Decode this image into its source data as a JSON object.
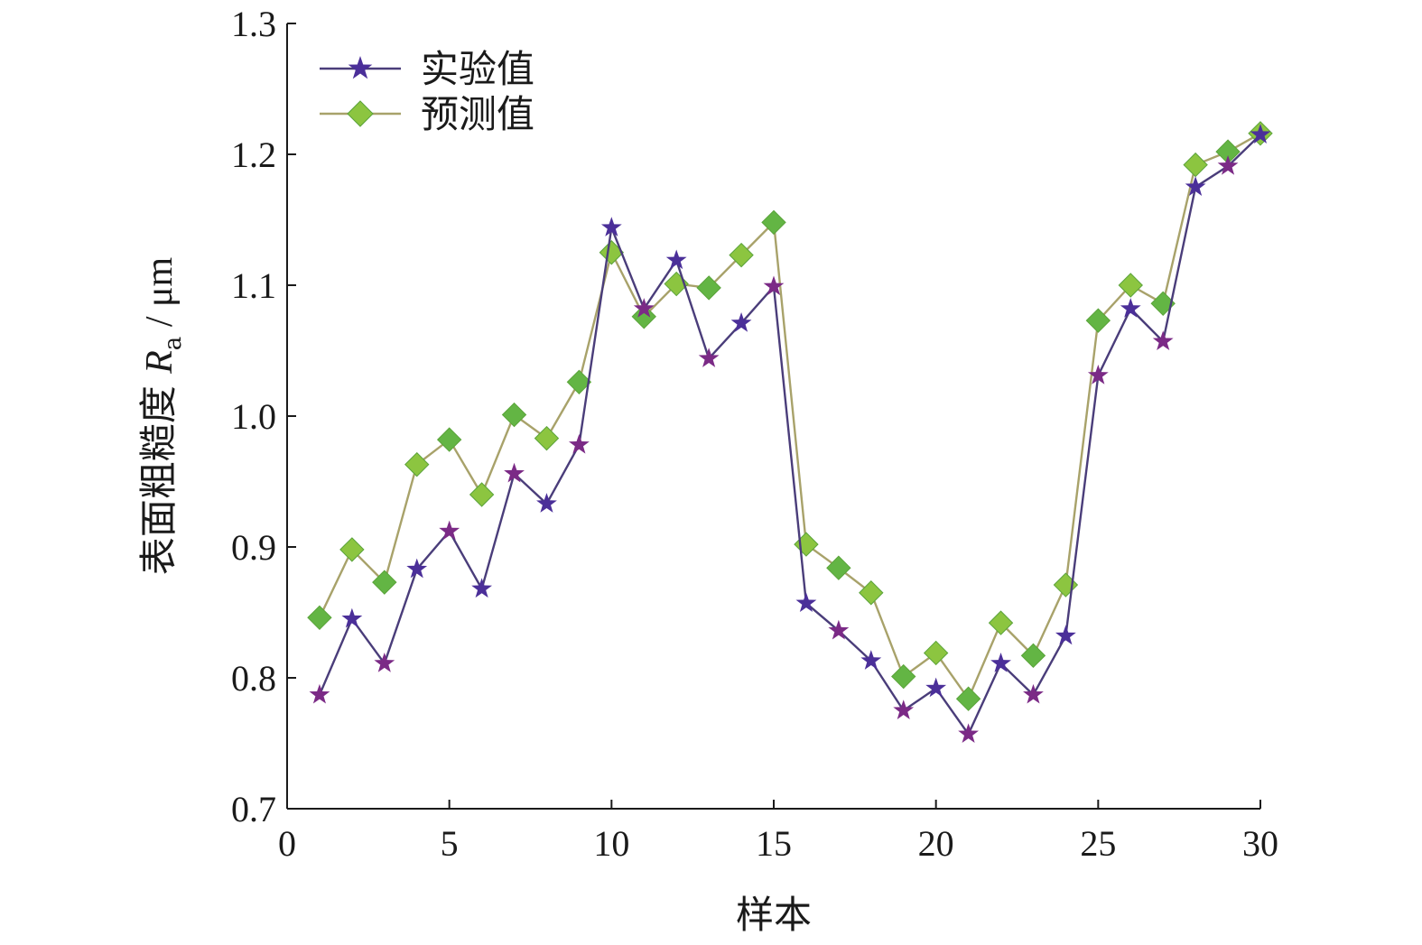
{
  "chart_data": {
    "type": "line",
    "xlabel": "样本",
    "ylabel_main": "表面粗糙度 ",
    "ylabel_var": "R",
    "ylabel_sub": "a",
    "ylabel_unit": " / μm",
    "xlim": [
      0,
      30
    ],
    "ylim": [
      0.7,
      1.3
    ],
    "xticks": [
      0,
      5,
      10,
      15,
      20,
      25,
      30
    ],
    "yticks": [
      "0.7",
      "0.8",
      "0.9",
      "1.0",
      "1.1",
      "1.2",
      "1.3"
    ],
    "grid": false,
    "legend_position": "top-left",
    "x": [
      1,
      2,
      3,
      4,
      5,
      6,
      7,
      8,
      9,
      10,
      11,
      12,
      13,
      14,
      15,
      16,
      17,
      18,
      19,
      20,
      21,
      22,
      23,
      24,
      25,
      26,
      27,
      28,
      29,
      30
    ],
    "series": [
      {
        "name": "实验值",
        "marker": "star",
        "color": "#4a3d7a",
        "marker_colors": [
          "#7b2a86",
          "#4b2f99"
        ],
        "values": [
          0.787,
          0.845,
          0.811,
          0.883,
          0.912,
          0.868,
          0.956,
          0.933,
          0.978,
          1.144,
          1.082,
          1.119,
          1.044,
          1.071,
          1.099,
          0.857,
          0.836,
          0.813,
          0.775,
          0.792,
          0.757,
          0.811,
          0.787,
          0.832,
          1.031,
          1.082,
          1.057,
          1.175,
          1.191,
          1.215
        ]
      },
      {
        "name": "预测值",
        "marker": "diamond",
        "color": "#a8a26a",
        "marker_colors": [
          "#63b544",
          "#8cc540"
        ],
        "values": [
          0.846,
          0.898,
          0.873,
          0.963,
          0.982,
          0.94,
          1.001,
          0.983,
          1.026,
          1.125,
          1.076,
          1.101,
          1.098,
          1.123,
          1.148,
          0.902,
          0.884,
          0.865,
          0.801,
          0.819,
          0.784,
          0.842,
          0.817,
          0.871,
          1.073,
          1.1,
          1.086,
          1.192,
          1.202,
          1.216
        ]
      }
    ]
  }
}
